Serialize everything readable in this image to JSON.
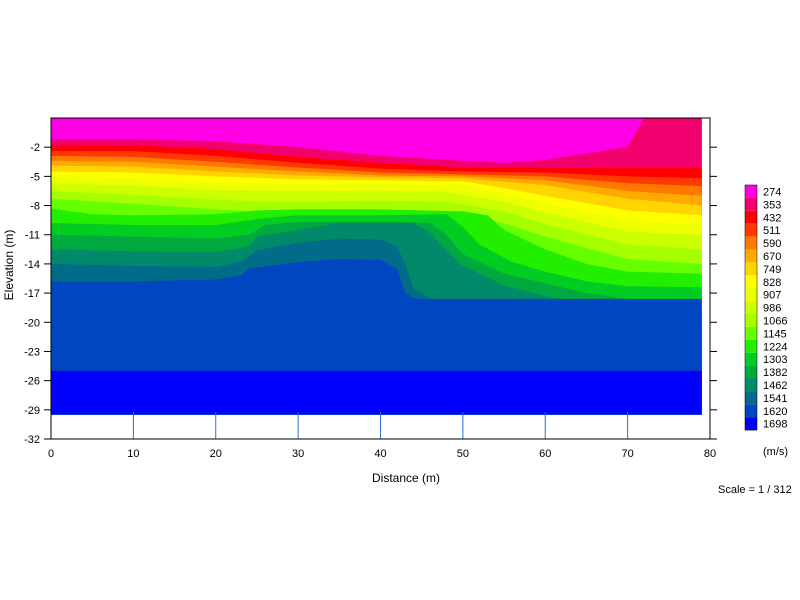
{
  "chart_data": {
    "type": "heatmap",
    "xlabel": "Distance (m)",
    "ylabel": "Elevation (m)",
    "xlim": [
      0,
      80
    ],
    "ylim": [
      -32,
      1
    ],
    "x_ticks": [
      "0",
      "10",
      "20",
      "30",
      "40",
      "50",
      "60",
      "70",
      "80"
    ],
    "y_ticks": [
      "-2",
      "-5",
      "-8",
      "-11",
      "-14",
      "-17",
      "-20",
      "-23",
      "-26",
      "-29",
      "-32"
    ],
    "colorbar": {
      "unit": "(m/s)",
      "values": [
        "274",
        "353",
        "432",
        "511",
        "590",
        "670",
        "749",
        "828",
        "907",
        "986",
        "1066",
        "1145",
        "1224",
        "1303",
        "1382",
        "1462",
        "1541",
        "1620",
        "1698"
      ],
      "colors": [
        "#ff00e6",
        "#f2006e",
        "#ff0000",
        "#ff3a00",
        "#ff7800",
        "#ffaa00",
        "#ffd400",
        "#ffff00",
        "#eeff00",
        "#ccff00",
        "#a6ff00",
        "#66ff00",
        "#22ee00",
        "#00cc22",
        "#00a840",
        "#008a6a",
        "#006c8a",
        "#0046c0",
        "#0000ff"
      ]
    },
    "scale_label": "Scale = 1 / 312",
    "velocity_boundaries": [
      {
        "value": 274,
        "x": [
          0,
          10,
          20,
          30,
          40,
          50,
          60,
          70,
          73,
          79
        ],
        "y": [
          1,
          1,
          1,
          1,
          1,
          1,
          1,
          1,
          1,
          1
        ]
      },
      {
        "value": 353,
        "x": [
          0,
          10,
          20,
          30,
          40,
          50,
          55,
          60,
          70,
          72,
          79
        ],
        "y": [
          -1.2,
          -1.2,
          -1.4,
          -2.0,
          -2.9,
          -3.4,
          -3.6,
          -3.3,
          -2.0,
          1.0,
          1.0
        ]
      },
      {
        "value": 432,
        "x": [
          0,
          10,
          20,
          30,
          40,
          50,
          60,
          70,
          79
        ],
        "y": [
          -1.8,
          -1.8,
          -2.2,
          -3.0,
          -3.6,
          -4.1,
          -4.1,
          -4.1,
          -4.1
        ]
      },
      {
        "value": 511,
        "x": [
          0,
          10,
          20,
          30,
          40,
          50,
          60,
          70,
          79
        ],
        "y": [
          -2.4,
          -2.4,
          -2.9,
          -3.6,
          -4.2,
          -4.5,
          -4.6,
          -5.0,
          -5.2
        ]
      },
      {
        "value": 590,
        "x": [
          0,
          10,
          20,
          30,
          40,
          50,
          60,
          70,
          79
        ],
        "y": [
          -2.9,
          -3.0,
          -3.5,
          -4.1,
          -4.6,
          -4.8,
          -5.0,
          -5.7,
          -6.0
        ]
      },
      {
        "value": 670,
        "x": [
          0,
          10,
          20,
          30,
          40,
          50,
          60,
          70,
          79
        ],
        "y": [
          -3.4,
          -3.5,
          -4.0,
          -4.5,
          -4.9,
          -5.0,
          -5.4,
          -6.5,
          -7.0
        ]
      },
      {
        "value": 749,
        "x": [
          0,
          10,
          20,
          30,
          40,
          50,
          60,
          70,
          79
        ],
        "y": [
          -3.9,
          -4.0,
          -4.5,
          -4.9,
          -5.1,
          -5.2,
          -5.9,
          -7.3,
          -8.0
        ]
      },
      {
        "value": 828,
        "x": [
          0,
          10,
          20,
          30,
          40,
          50,
          55,
          60,
          70,
          79
        ],
        "y": [
          -4.5,
          -4.6,
          -5.0,
          -5.3,
          -5.4,
          -5.5,
          -6.2,
          -7.0,
          -8.5,
          -9.0
        ]
      },
      {
        "value": 907,
        "x": [
          0,
          10,
          20,
          30,
          40,
          50,
          55,
          60,
          70,
          79
        ],
        "y": [
          -5.0,
          -5.2,
          -5.6,
          -5.8,
          -5.8,
          -5.9,
          -6.8,
          -7.8,
          -9.5,
          -10.0
        ]
      },
      {
        "value": 986,
        "x": [
          0,
          10,
          20,
          30,
          40,
          48,
          55,
          60,
          70,
          79
        ],
        "y": [
          -5.7,
          -6.0,
          -6.4,
          -6.5,
          -6.5,
          -6.6,
          -7.6,
          -8.7,
          -10.7,
          -11.0
        ]
      },
      {
        "value": 1066,
        "x": [
          0,
          10,
          20,
          26,
          30,
          40,
          48,
          55,
          60,
          70,
          79
        ],
        "y": [
          -6.5,
          -6.9,
          -7.4,
          -7.6,
          -7.6,
          -7.5,
          -7.6,
          -8.6,
          -9.9,
          -12.0,
          -12.5
        ]
      },
      {
        "value": 1145,
        "x": [
          0,
          10,
          20,
          26,
          30,
          40,
          48,
          55,
          60,
          70,
          79
        ],
        "y": [
          -7.3,
          -7.8,
          -8.4,
          -8.6,
          -8.5,
          -8.4,
          -8.6,
          -9.8,
          -11.2,
          -13.5,
          -14.0
        ]
      },
      {
        "value": 1224,
        "x": [
          0,
          5,
          10,
          20,
          25,
          30,
          40,
          50,
          53,
          55,
          60,
          65,
          70,
          79
        ],
        "y": [
          -8.3,
          -8.9,
          -9.0,
          -8.9,
          -8.5,
          -8.4,
          -8.4,
          -8.6,
          -9.0,
          -10.5,
          -12.5,
          -14.0,
          -14.8,
          -15.0
        ]
      },
      {
        "value": 1303,
        "x": [
          0,
          10,
          20,
          25,
          30,
          40,
          48,
          50,
          52,
          56,
          60,
          65,
          70,
          79
        ],
        "y": [
          -9.8,
          -10.0,
          -10.0,
          -9.4,
          -9.0,
          -9.0,
          -8.9,
          -10.2,
          -12.0,
          -13.8,
          -14.8,
          -15.8,
          -16.3,
          -16.4
        ]
      },
      {
        "value": 1382,
        "x": [
          0,
          10,
          20,
          24,
          26,
          30,
          40,
          46,
          48,
          50,
          55,
          60,
          65,
          70,
          79
        ],
        "y": [
          -11.0,
          -11.2,
          -11.4,
          -11.0,
          -10.0,
          -9.7,
          -9.6,
          -9.8,
          -11.0,
          -13.0,
          -15.0,
          -16.0,
          -17.0,
          -17.6,
          -17.8
        ]
      },
      {
        "value": 1462,
        "x": [
          0,
          10,
          20,
          24,
          25,
          30,
          35,
          40,
          44,
          46,
          48,
          50,
          55,
          60,
          65,
          70,
          79
        ],
        "y": [
          -12.5,
          -12.7,
          -12.8,
          -12.2,
          -11.2,
          -10.5,
          -9.8,
          -9.8,
          -9.8,
          -10.8,
          -12.6,
          -14.2,
          -16.2,
          -17.3,
          -18.2,
          -18.8,
          -19.0
        ]
      },
      {
        "value": 1541,
        "x": [
          0,
          10,
          20,
          23,
          25,
          30,
          35,
          40,
          42,
          43,
          44,
          46,
          50,
          55,
          60,
          65,
          70,
          79
        ],
        "y": [
          -14.0,
          -14.2,
          -14.3,
          -13.8,
          -12.6,
          -11.8,
          -11.4,
          -11.5,
          -12.2,
          -14.0,
          -16.5,
          -17.5,
          -18.6,
          -19.6,
          -20.1,
          -20.4,
          -20.4,
          -20.4
        ]
      },
      {
        "value": 1620,
        "x": [
          0,
          10,
          20,
          23,
          24,
          30,
          35,
          40,
          42,
          43,
          44,
          45,
          50,
          60,
          70,
          79
        ],
        "y": [
          -15.8,
          -15.8,
          -15.6,
          -15.2,
          -14.5,
          -13.8,
          -13.5,
          -13.6,
          -14.5,
          -17.0,
          -17.5,
          -17.6,
          -17.6,
          -17.6,
          -17.6,
          -17.6
        ]
      },
      {
        "value": 1698,
        "x": [
          0,
          10,
          20,
          30,
          40,
          50,
          60,
          70,
          79
        ],
        "y": [
          -25.0,
          -25.0,
          -25.0,
          -25.0,
          -25.0,
          -25.0,
          -25.0,
          -25.0,
          -25.0
        ]
      }
    ],
    "model_extent": {
      "x": [
        0,
        79
      ],
      "y_top": 1,
      "y_bottom": -29.5
    }
  }
}
